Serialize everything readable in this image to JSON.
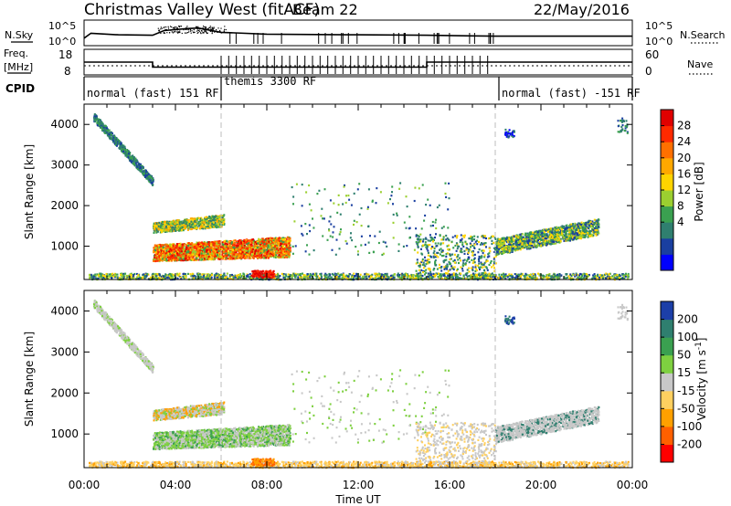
{
  "header": {
    "title": "Christmas Valley West (fitACF)",
    "beam": "Beam 22",
    "date": "22/May/2016"
  },
  "sky_panel": {
    "left_label": "N.Sky",
    "right_label": "N.Search",
    "left_ticks": [
      "10^5",
      "10^0"
    ],
    "right_ticks": [
      "10^5",
      "10^0"
    ]
  },
  "freq_panel": {
    "left_label_1": "Freq.",
    "left_label_2": "[MHz]",
    "right_label": "Nave",
    "left_ticks": [
      "18",
      "8"
    ],
    "right_ticks": [
      "60",
      "0"
    ]
  },
  "cpid": {
    "label": "CPID",
    "segments": [
      {
        "text": "normal (fast) 151 RF",
        "start_h": 0,
        "end_h": 6
      },
      {
        "text": "themis 3300 RF",
        "start_h": 6,
        "end_h": 18
      },
      {
        "text": "normal (fast) -151 RF",
        "start_h": 18,
        "end_h": 24
      }
    ]
  },
  "power_panel": {
    "ylabel": "Slant Range [km]",
    "cbar_label": "Power [dB]",
    "cbar_ticks": [
      "28",
      "24",
      "20",
      "16",
      "12",
      "8",
      "4"
    ],
    "cbar_colors": [
      "#0000ff",
      "#1a3fa0",
      "#2f7f6f",
      "#3aa050",
      "#9bcf30",
      "#ffd400",
      "#ffa800",
      "#ff7000",
      "#ff2a00",
      "#e00000"
    ]
  },
  "velocity_panel": {
    "ylabel": "Slant Range [km]",
    "cbar_label": "Velocity [m s",
    "cbar_sup": "-1",
    "cbar_label_end": "]",
    "cbar_ticks": [
      "200",
      "100",
      "50",
      "15",
      "-15",
      "-50",
      "-100",
      "-200"
    ],
    "cbar_colors": [
      "#ff0000",
      "#ff6000",
      "#ffa000",
      "#ffd060",
      "#c8c8c8",
      "#7ed040",
      "#3aa050",
      "#2f7f6f",
      "#1c3fa8"
    ]
  },
  "x_axis": {
    "label": "Time UT",
    "ticks": [
      "00:00",
      "04:00",
      "08:00",
      "12:00",
      "16:00",
      "20:00",
      "00:00"
    ]
  },
  "chart_data": [
    {
      "type": "line",
      "title": "Christmas Valley West (fitACF)",
      "ylabel": "N.Sky / N.Search",
      "scale": "log",
      "series": [
        {
          "name": "N.Sky",
          "x": [
            0,
            0.3,
            1.5,
            3,
            3.5,
            4.5,
            5,
            6,
            8,
            12,
            15,
            18,
            22,
            24
          ],
          "y": [
            20,
            1000,
            300,
            200,
            8000,
            40000,
            60000,
            2000,
            500,
            300,
            200,
            100,
            100,
            100
          ]
        }
      ]
    },
    {
      "type": "line",
      "ylabel": "Freq. [MHz] / Nave",
      "series": [
        {
          "name": "Freq.",
          "x": [
            0,
            3,
            3,
            15,
            15,
            24
          ],
          "y": [
            13,
            13,
            10.7,
            10.7,
            13,
            13
          ]
        }
      ],
      "ylim": [
        8,
        18
      ]
    },
    {
      "type": "heatmap",
      "ylabel": "Slant Range [km]",
      "xlabel": "",
      "colorbar_label": "Power [dB]",
      "colorbar_range": [
        0,
        30
      ],
      "ylim": [
        180,
        4500
      ],
      "xlim_hours": [
        0,
        24
      ]
    },
    {
      "type": "heatmap",
      "ylabel": "Slant Range [km]",
      "xlabel": "Time UT",
      "colorbar_label": "Velocity [m s-1]",
      "colorbar_range": [
        -250,
        250
      ],
      "ylim": [
        180,
        4500
      ],
      "xlim_hours": [
        0,
        24
      ]
    }
  ]
}
